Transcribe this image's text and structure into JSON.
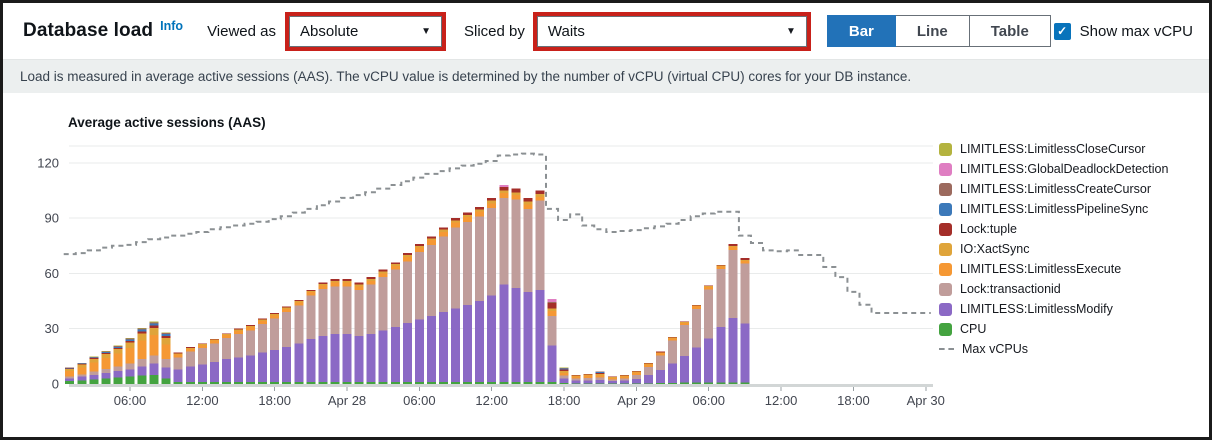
{
  "header": {
    "title": "Database load",
    "info_label": "Info",
    "viewed_as_label": "Viewed as",
    "viewed_as_value": "Absolute",
    "sliced_by_label": "Sliced by",
    "sliced_by_value": "Waits",
    "views": [
      "Bar",
      "Line",
      "Table"
    ],
    "active_view": "Bar",
    "show_max_label": "Show max vCPU",
    "show_max_checked": true
  },
  "description": "Load is measured in average active sessions (AAS). The vCPU value is determined by the number of vCPU (virtual CPU) cores for your DB instance.",
  "icons": {
    "chevron_down": "▼",
    "check": "✓"
  },
  "colors": {
    "accent_blue": "#2272b8",
    "checkbox_blue": "#0873bb",
    "link_blue": "#0073bb",
    "highlight_red": "#c8211a",
    "grid": "#e9ebeb",
    "baseline": "#d2d6d6",
    "axis_text": "#424650",
    "max_line": "#8b9093"
  },
  "legend": [
    {
      "label": "LIMITLESS:LimitlessCloseCursor",
      "color": "#b4b33f",
      "type": "box"
    },
    {
      "label": "LIMITLESS:GlobalDeadlockDetection",
      "color": "#df7ec2",
      "type": "box"
    },
    {
      "label": "LIMITLESS:LimitlessCreateCursor",
      "color": "#9c6a5e",
      "type": "box"
    },
    {
      "label": "LIMITLESS:LimitlessPipelineSync",
      "color": "#3c79b9",
      "type": "box"
    },
    {
      "label": "Lock:tuple",
      "color": "#a42e29",
      "type": "box"
    },
    {
      "label": "IO:XactSync",
      "color": "#dfa43a",
      "type": "box"
    },
    {
      "label": "LIMITLESS:LimitlessExecute",
      "color": "#f59834",
      "type": "box"
    },
    {
      "label": "Lock:transactionid",
      "color": "#c09d9b",
      "type": "box"
    },
    {
      "label": "LIMITLESS:LimitlessModify",
      "color": "#8b69c5",
      "type": "box"
    },
    {
      "label": "CPU",
      "color": "#44a340",
      "type": "box"
    },
    {
      "label": "Max vCPUs",
      "color": "#8b9093",
      "type": "dash"
    }
  ],
  "chart_data": {
    "type": "bar",
    "stacked": true,
    "title": "Average active sessions (AAS)",
    "ylabel": "",
    "xlabel": "",
    "ylim": [
      0,
      130
    ],
    "yticks": [
      0,
      30,
      60,
      90,
      120
    ],
    "time_axis_note": "hourly bars, hour 0 = 01:00 Apr 27",
    "xticks": [
      {
        "hour": 5,
        "label": "06:00"
      },
      {
        "hour": 11,
        "label": "12:00"
      },
      {
        "hour": 17,
        "label": "18:00"
      },
      {
        "hour": 23,
        "label": "Apr 28"
      },
      {
        "hour": 29,
        "label": "06:00"
      },
      {
        "hour": 35,
        "label": "12:00"
      },
      {
        "hour": 41,
        "label": "18:00"
      },
      {
        "hour": 47,
        "label": "Apr 29"
      },
      {
        "hour": 53,
        "label": "06:00"
      },
      {
        "hour": 59,
        "label": "12:00"
      },
      {
        "hour": 65,
        "label": "18:00"
      },
      {
        "hour": 71,
        "label": "Apr 30"
      }
    ],
    "series": [
      {
        "name": "CPU",
        "color": "#44a340",
        "values": [
          1.5,
          2,
          2.5,
          3,
          3.5,
          4,
          4.5,
          5,
          3,
          1,
          1,
          1,
          1,
          1,
          1,
          1,
          1,
          1,
          1,
          1,
          1,
          1,
          1,
          1,
          1,
          1,
          1,
          1,
          1,
          1,
          1,
          1,
          1,
          1,
          1,
          1,
          1,
          1,
          1,
          1,
          1,
          0.5,
          0.3,
          0.3,
          0.3,
          0.2,
          0.3,
          0.3,
          0.4,
          0.5,
          0.5,
          0.7,
          0.8,
          0.8,
          0.8,
          0.8,
          0.8
        ]
      },
      {
        "name": "LIMITLESS:LimitlessModify",
        "color": "#8b69c5",
        "values": [
          1.5,
          2,
          2.5,
          3,
          3.5,
          4,
          5,
          6,
          6,
          7,
          8.5,
          9.5,
          11,
          12.5,
          13.5,
          14.5,
          16,
          17.5,
          19,
          21,
          23.5,
          25,
          26,
          26,
          25,
          26,
          28,
          30,
          32,
          34,
          36,
          38,
          40,
          42,
          44,
          47,
          53,
          51,
          49,
          50,
          20,
          2.5,
          1.5,
          1.7,
          1.8,
          1.3,
          1.5,
          2.5,
          4.5,
          7,
          10.5,
          14.5,
          19,
          24,
          30,
          35,
          32
        ]
      },
      {
        "name": "Lock:transactionid",
        "color": "#c09d9b",
        "values": [
          1,
          1.2,
          1.8,
          2.2,
          2.5,
          3,
          4,
          4.5,
          4.5,
          6.5,
          8,
          9,
          10,
          11.5,
          12.5,
          13.5,
          15.5,
          17,
          19,
          20.5,
          23.5,
          25.5,
          26,
          26,
          25,
          27,
          29,
          31,
          33.5,
          36.5,
          38.5,
          41,
          44,
          45,
          46,
          47.5,
          47,
          48,
          45,
          48.5,
          16,
          1.5,
          1.2,
          1.3,
          1.4,
          1,
          1.2,
          2.2,
          4.3,
          8,
          12.5,
          16.8,
          21,
          26.5,
          31.5,
          37,
          32.5
        ]
      },
      {
        "name": "LIMITLESS:LimitlessExecute",
        "color": "#f59834",
        "values": [
          3,
          3.8,
          5,
          6,
          7,
          8.5,
          10,
          11,
          8,
          1.5,
          1.5,
          1.5,
          1.5,
          1.5,
          1.8,
          1.8,
          1.8,
          1.8,
          1.8,
          1.8,
          1.8,
          2,
          2,
          2,
          2,
          2,
          2,
          2,
          2.5,
          2.5,
          2.5,
          2.5,
          2.5,
          2.5,
          2.5,
          2.5,
          2.5,
          2.5,
          2.5,
          2,
          2.5,
          1.5,
          1,
          1.2,
          1.2,
          0.8,
          1.1,
          1.2,
          1.5,
          1.2,
          1.2,
          1.2,
          1.4,
          1.4,
          1.4,
          1.6,
          1.4
        ]
      },
      {
        "name": "IO:XactSync",
        "color": "#dfa43a",
        "values": [
          1.2,
          1.5,
          1.8,
          2.2,
          2.5,
          3,
          4,
          4,
          3.5,
          0.6,
          0.6,
          0.6,
          0.6,
          0.6,
          0.7,
          0.7,
          0.7,
          0.7,
          0.7,
          0.7,
          0.7,
          0.8,
          1,
          1,
          1,
          1,
          1,
          1,
          1,
          1,
          1,
          1.2,
          1.2,
          1.2,
          1.2,
          1.5,
          1.5,
          1.5,
          1.5,
          1.5,
          1.5,
          1,
          0.6,
          0.6,
          0.8,
          0.5,
          0.6,
          0.5,
          0.5,
          0.5,
          0.5,
          0.5,
          0.5,
          0.5,
          0.5,
          0.6,
          0.6
        ]
      },
      {
        "name": "Lock:tuple",
        "color": "#a42e29",
        "values": [
          0.3,
          0.3,
          0.4,
          0.5,
          0.6,
          0.8,
          1,
          1.2,
          1,
          0.4,
          0.4,
          0.4,
          0.4,
          0.4,
          0.5,
          0.5,
          0.5,
          0.5,
          0.5,
          0.5,
          0.5,
          0.7,
          1,
          1,
          1,
          1,
          1,
          1,
          1,
          1,
          1,
          1.3,
          1.3,
          1.3,
          1.3,
          1.5,
          2,
          2,
          2,
          2,
          3,
          1,
          0.4,
          0.4,
          0.4,
          0.2,
          0.3,
          0.3,
          0.3,
          0.3,
          0.3,
          0.3,
          0.3,
          0.3,
          0.3,
          1,
          1.2
        ]
      },
      {
        "name": "LIMITLESS:LimitlessPipelineSync",
        "color": "#3c79b9",
        "values": [
          0.2,
          0.3,
          0.4,
          0.5,
          0.6,
          0.8,
          1,
          1.2,
          1.2,
          0,
          0,
          0,
          0,
          0,
          0,
          0,
          0,
          0,
          0,
          0,
          0,
          0,
          0,
          0,
          0,
          0,
          0,
          0,
          0,
          0,
          0,
          0,
          0,
          0,
          0,
          0,
          0,
          0,
          0,
          0,
          0,
          0.5,
          0,
          0,
          0.6,
          0,
          0,
          0,
          0,
          0,
          0,
          0,
          0,
          0,
          0,
          0,
          0
        ]
      },
      {
        "name": "LIMITLESS:LimitlessCreateCursor",
        "color": "#9c6a5e",
        "values": [
          0.2,
          0.2,
          0.3,
          0.3,
          0.4,
          0.5,
          0.5,
          0.6,
          0.4,
          0,
          0,
          0,
          0,
          0,
          0,
          0,
          0,
          0,
          0,
          0,
          0,
          0,
          0,
          0,
          0,
          0,
          0,
          0,
          0,
          0,
          0,
          0,
          0,
          0,
          0,
          0,
          0,
          0,
          0,
          0,
          0.5,
          0.3,
          0,
          0,
          0.2,
          0,
          0,
          0,
          0,
          0,
          0,
          0,
          0,
          0,
          0,
          0,
          0
        ]
      },
      {
        "name": "LIMITLESS:GlobalDeadlockDetection",
        "color": "#df7ec2",
        "values": [
          0,
          0,
          0,
          0,
          0,
          0,
          0,
          0,
          0,
          0,
          0,
          0,
          0,
          0,
          0,
          0,
          0,
          0,
          0,
          0,
          0,
          0,
          0,
          0,
          0,
          0,
          0,
          0,
          0,
          0,
          0,
          0,
          0,
          0,
          0,
          0,
          1,
          0,
          0,
          0,
          1.5,
          0,
          0,
          0,
          0,
          0,
          0,
          0,
          0,
          0,
          0,
          0,
          0,
          0,
          0,
          0,
          0
        ]
      },
      {
        "name": "LIMITLESS:LimitlessCloseCursor",
        "color": "#b4b33f",
        "values": [
          0.1,
          0.2,
          0.3,
          0.3,
          0.4,
          0.4,
          0.5,
          0.5,
          0.4,
          0,
          0,
          0,
          0,
          0,
          0,
          0,
          0,
          0,
          0,
          0,
          0,
          0,
          0,
          0,
          0,
          0,
          0,
          0,
          0,
          0,
          0,
          0,
          0,
          0,
          0,
          0,
          0,
          0,
          0,
          0,
          0,
          0.2,
          0,
          0,
          0.2,
          0,
          0,
          0,
          0,
          0,
          0,
          0,
          0,
          0,
          0,
          0,
          0
        ]
      }
    ],
    "max_vcpus": {
      "name": "Max vCPUs",
      "color": "#8b9093",
      "values": [
        70.5,
        71,
        72.5,
        74,
        75,
        75.5,
        77,
        78.5,
        79.5,
        80.5,
        81.5,
        82.5,
        84,
        85,
        86,
        87,
        88,
        89.5,
        91,
        93,
        95,
        97,
        99,
        101,
        102.5,
        104,
        106,
        108,
        110,
        112,
        114,
        115.5,
        117,
        118.5,
        119.5,
        121,
        124,
        124.5,
        125,
        124.5,
        95,
        89,
        92,
        86,
        84,
        82.5,
        83,
        83.5,
        84.5,
        85.5,
        87,
        89,
        91,
        92.5,
        93.5,
        93.5,
        80.5,
        76.5,
        72.5,
        72,
        72.5,
        70,
        70,
        63.5,
        58,
        50,
        43,
        38.5,
        38.5,
        38.5,
        38.5,
        38.5
      ]
    }
  }
}
